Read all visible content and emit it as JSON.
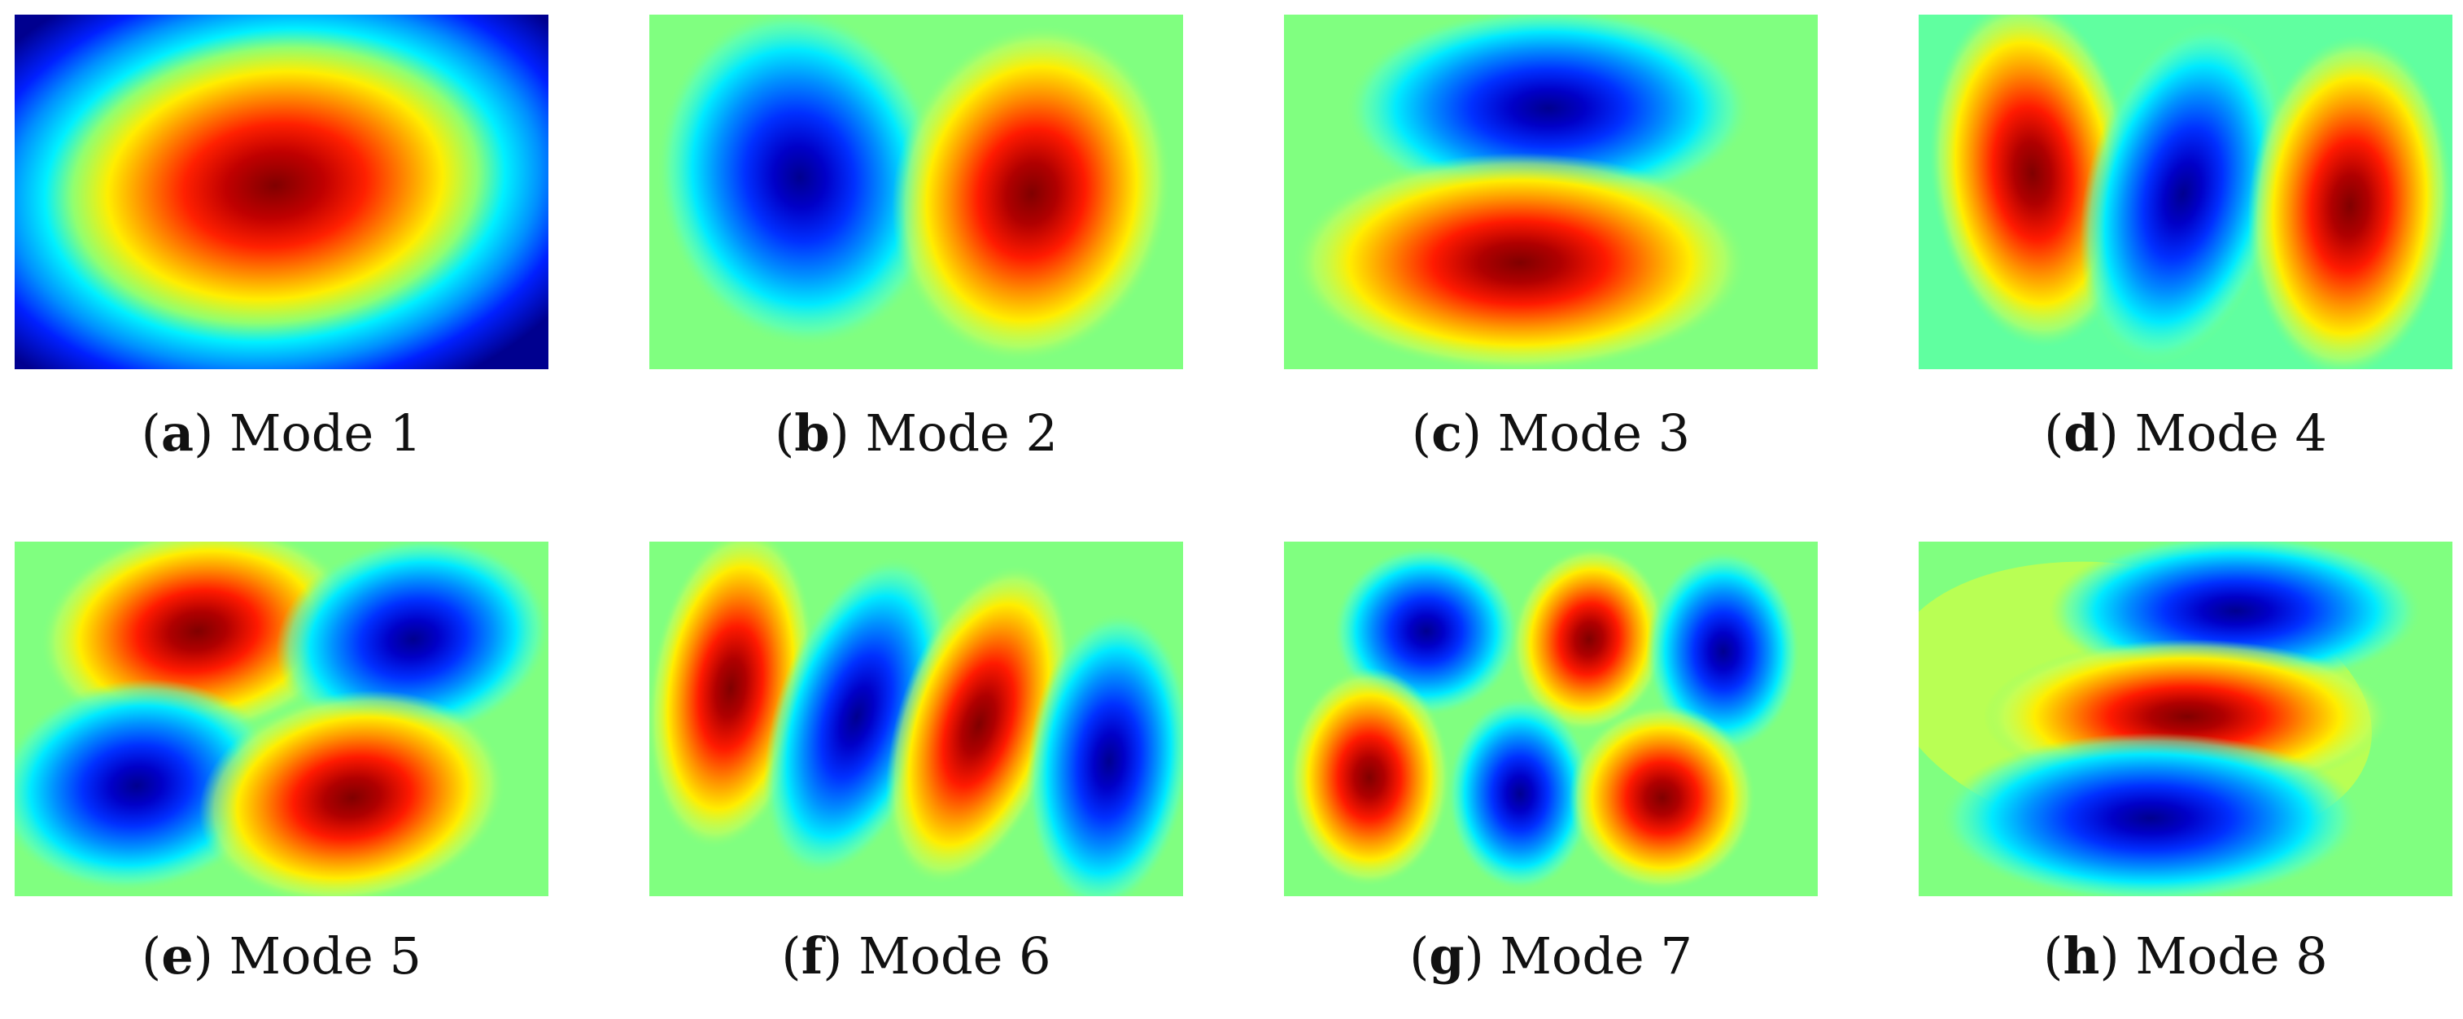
{
  "colors": {
    "neutral": "#80ff80",
    "deep_red": "#800000",
    "red": "#ff0000",
    "yellow": "#ffff00",
    "cyan": "#00ffff",
    "blue": "#0000ff",
    "deep_blue": "#00008f"
  },
  "panels": [
    {
      "letter": "a",
      "label": "Mode 1"
    },
    {
      "letter": "b",
      "label": "Mode 2"
    },
    {
      "letter": "c",
      "label": "Mode 3"
    },
    {
      "letter": "d",
      "label": "Mode 4"
    },
    {
      "letter": "e",
      "label": "Mode 5"
    },
    {
      "letter": "f",
      "label": "Mode 6"
    },
    {
      "letter": "g",
      "label": "Mode 7"
    },
    {
      "letter": "h",
      "label": "Mode 8"
    }
  ]
}
